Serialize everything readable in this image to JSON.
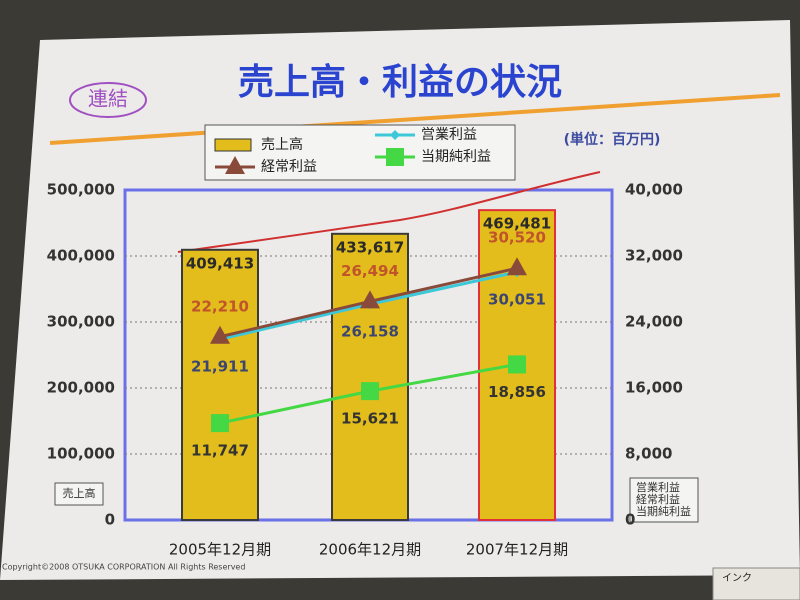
{
  "chart_data": {
    "type": "bar_line",
    "title": "売上高・利益の状況",
    "badge": "連結",
    "unit": "(単位：百万円)",
    "footer": "Copyright©2008 OTSUKA CORPORATION All Rights Reserved",
    "toolbar_label": "インク",
    "categories": [
      "2005年12月期",
      "2006年12月期",
      "2007年12月期"
    ],
    "series": [
      {
        "name": "売上高",
        "type": "bar",
        "color": "#e2bd1c",
        "edgecolors": [
          "#3a3a3a",
          "#3a3a3a",
          "#e0303a"
        ],
        "values": [
          409413,
          433617,
          469481
        ],
        "value_labels": [
          "409,413",
          "433,617",
          "469,481"
        ],
        "label_color": "#2a2a2a"
      },
      {
        "name": "営業利益",
        "type": "line",
        "axis": "y2",
        "color": "#3cc8d8",
        "marker": "diamond",
        "label_position": "below",
        "label_color": "#3c4670",
        "values": [
          21911,
          26158,
          30051
        ],
        "value_labels": [
          "21,911",
          "26,158",
          "30,051"
        ]
      },
      {
        "name": "経常利益",
        "type": "line",
        "axis": "y2",
        "color": "#8a4a3a",
        "marker": "triangle",
        "label_position": "above",
        "label_color": "#c0542a",
        "values": [
          22210,
          26494,
          30520
        ],
        "value_labels": [
          "22,210",
          "26,494",
          "30,520"
        ]
      },
      {
        "name": "当期純利益",
        "type": "line",
        "axis": "y2",
        "color": "#44d844",
        "marker": "square",
        "label_position": "below",
        "label_color": "#333333",
        "values": [
          11747,
          15621,
          18856
        ],
        "value_labels": [
          "11,747",
          "15,621",
          "18,856"
        ]
      }
    ],
    "ylim": [
      0,
      500000
    ],
    "yticks": [
      0,
      {
        "value": 100000,
        "label": "100,000"
      },
      {
        "value": 200000,
        "label": "200,000"
      },
      {
        "value": 300000,
        "label": "300,000"
      },
      {
        "value": 400000,
        "label": "400,000"
      },
      {
        "value": 500000,
        "label": "500,000"
      }
    ],
    "y2lim": [
      0,
      40000
    ],
    "y2ticks": [
      0,
      {
        "value": 8000,
        "label": "8,000"
      },
      {
        "value": 16000,
        "label": "16,000"
      },
      {
        "value": 24000,
        "label": "24,000"
      },
      {
        "value": 32000,
        "label": "32,000"
      },
      {
        "value": 40000,
        "label": "40,000"
      }
    ],
    "grid": true
  }
}
